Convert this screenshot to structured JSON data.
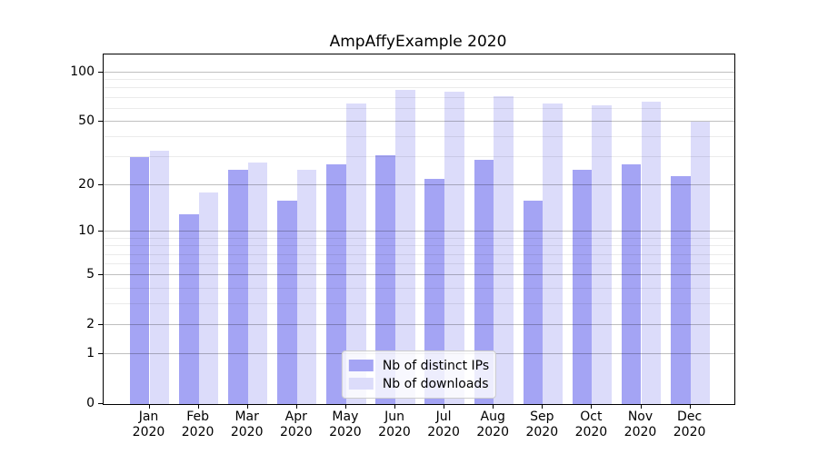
{
  "chart_data": {
    "type": "bar",
    "title": "AmpAffyExample 2020",
    "categories": [
      "Jan 2020",
      "Feb 2020",
      "Mar 2020",
      "Apr 2020",
      "May 2020",
      "Jun 2020",
      "Jul 2020",
      "Aug 2020",
      "Sep 2020",
      "Oct 2020",
      "Nov 2020",
      "Dec 2020"
    ],
    "series": [
      {
        "name": "Nb of distinct IPs",
        "color": "#a4a4f4",
        "values": [
          30,
          13,
          25,
          16,
          27,
          31,
          22,
          29,
          16,
          25,
          27,
          23
        ]
      },
      {
        "name": "Nb of downloads",
        "color": "#dcdcfa",
        "values": [
          33,
          18,
          28,
          25,
          65,
          78,
          76,
          72,
          65,
          63,
          66,
          50
        ]
      }
    ],
    "xlabel": "",
    "ylabel": "",
    "yscale": "log1p",
    "ylim": [
      0,
      129
    ],
    "yticks": [
      0,
      1,
      2,
      5,
      10,
      20,
      50,
      100
    ],
    "minor_yticks": [
      3,
      4,
      6,
      7,
      8,
      9,
      30,
      40,
      60,
      70,
      80,
      90
    ],
    "grid": true,
    "grid_major_color": "rgba(0,0,0,0.25)",
    "grid_minor_color": "rgba(0,0,0,0.08)",
    "legend_position": "lower center",
    "background_color": "#ffffff",
    "axis_color": "#000000"
  }
}
